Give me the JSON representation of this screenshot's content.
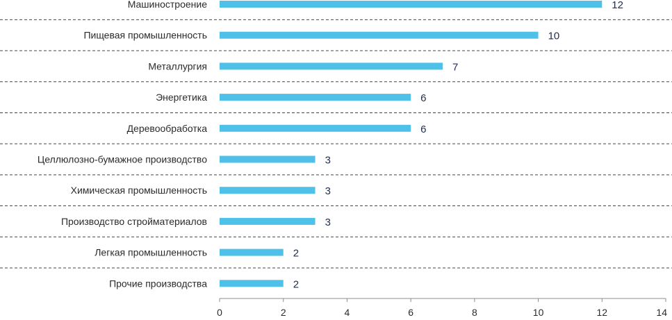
{
  "chart_data": {
    "type": "bar",
    "orientation": "horizontal",
    "categories": [
      "Машиностроение",
      "Пищевая промышленность",
      "Металлургия",
      "Энергетика",
      "Деревообработка",
      "Целлюлозно-бумажное производство",
      "Химическая промышленность",
      "Производство стройматериалов",
      "Легкая промышленность",
      "Прочие производства"
    ],
    "values": [
      12,
      10,
      7,
      6,
      6,
      3,
      3,
      3,
      2,
      2
    ],
    "xlim": [
      0,
      14
    ],
    "x_ticks": [
      "0",
      "2",
      "4",
      "6",
      "8",
      "10",
      "12",
      "14"
    ],
    "title": "",
    "xlabel": "",
    "ylabel": "",
    "grid": "dashed horizontal separators between categories",
    "bar_color": "#4fc1e9",
    "value_label_color": "#1f2d4d"
  }
}
